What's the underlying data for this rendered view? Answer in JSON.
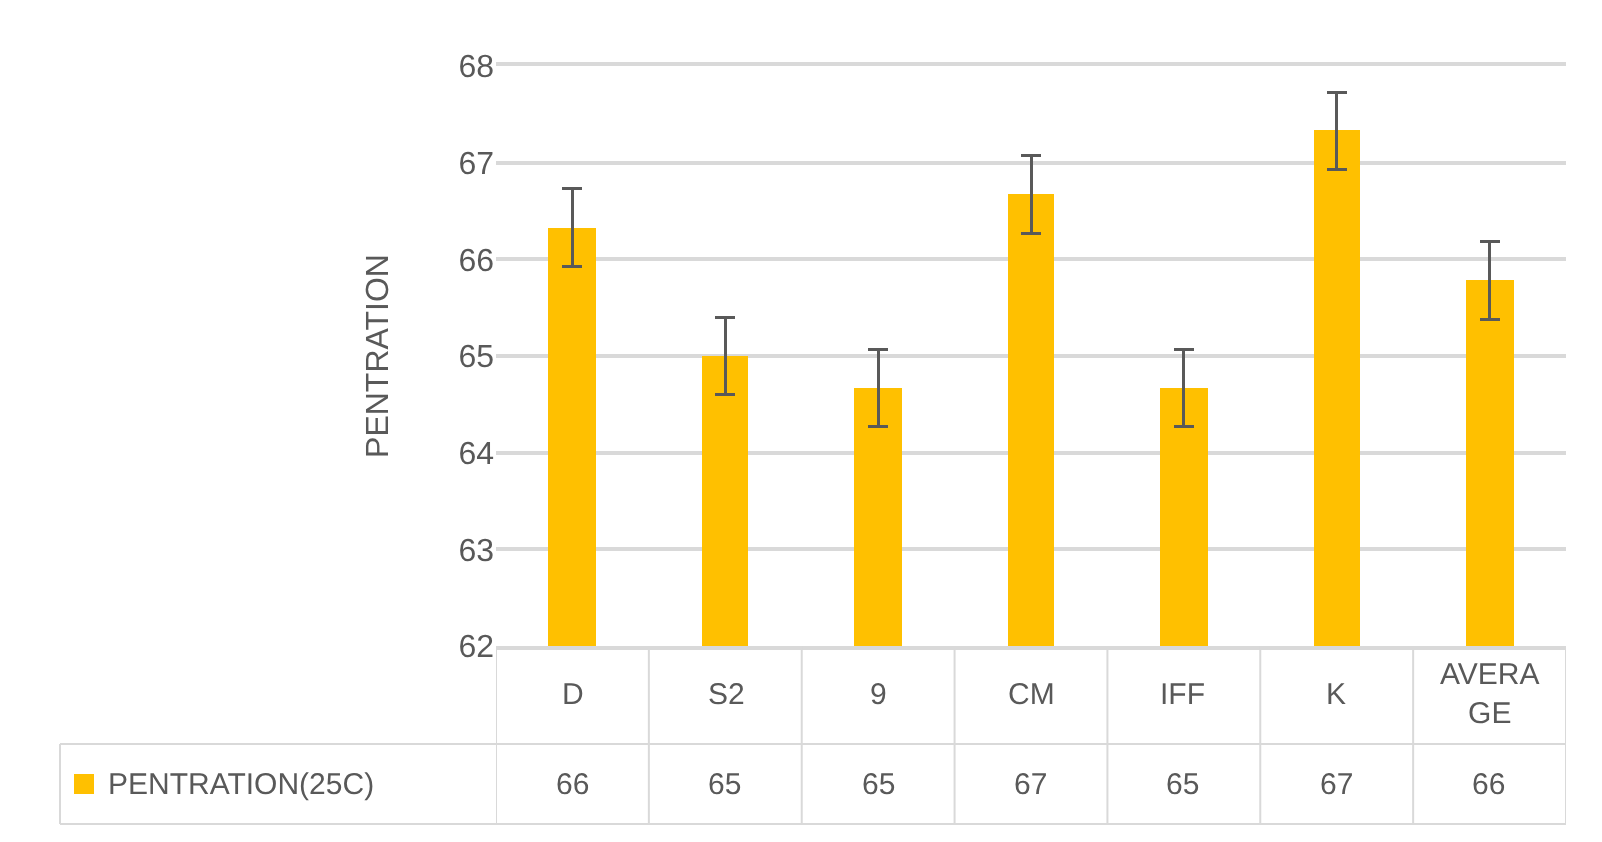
{
  "chart_data": {
    "type": "bar",
    "ylabel": "PENTRATION",
    "categories": [
      "D",
      "S2",
      "9",
      "CM",
      "IFF",
      "K",
      "AVERAGE"
    ],
    "series": [
      {
        "name": "PENTRATION(25C)",
        "color": "#ffc000",
        "values": [
          66.33,
          65.0,
          64.67,
          66.67,
          64.67,
          67.33,
          65.78
        ],
        "errors": [
          0.4,
          0.4,
          0.4,
          0.4,
          0.4,
          0.4,
          0.4
        ],
        "value_labels": [
          "66",
          "65",
          "65",
          "67",
          "65",
          "67",
          "66"
        ]
      }
    ],
    "ylim": [
      62,
      68
    ],
    "yticks": [
      62,
      63,
      64,
      65,
      66,
      67,
      68
    ],
    "grid": "y"
  }
}
